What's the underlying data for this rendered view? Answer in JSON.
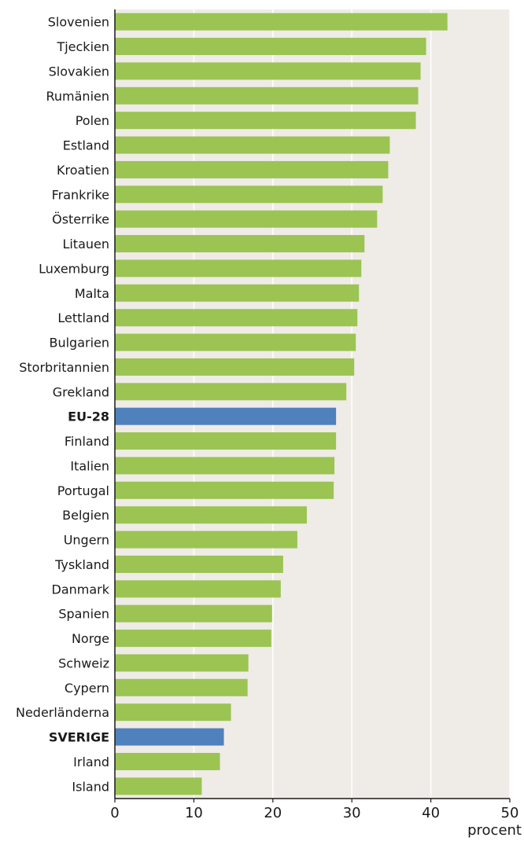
{
  "chart_data": {
    "type": "bar",
    "orientation": "horizontal",
    "title": "",
    "xlabel": "procent",
    "ylabel": "",
    "xlim": [
      0,
      50
    ],
    "xticks": [
      0,
      10,
      20,
      30,
      40,
      50
    ],
    "grid": true,
    "categories": [
      "Slovenien",
      "Tjeckien",
      "Slovakien",
      "Rumänien",
      "Polen",
      "Estland",
      "Kroatien",
      "Frankrike",
      "Österrike",
      "Litauen",
      "Luxemburg",
      "Malta",
      "Lettland",
      "Bulgarien",
      "Storbritannien",
      "Grekland",
      "EU-28",
      "Finland",
      "Italien",
      "Portugal",
      "Belgien",
      "Ungern",
      "Tyskland",
      "Danmark",
      "Spanien",
      "Norge",
      "Schweiz",
      "Cypern",
      "Nederländerna",
      "SVERIGE",
      "Irland",
      "Island"
    ],
    "values": [
      42.1,
      39.4,
      38.7,
      38.4,
      38.1,
      34.8,
      34.6,
      33.9,
      33.2,
      31.6,
      31.2,
      30.9,
      30.7,
      30.5,
      30.3,
      29.3,
      28.0,
      28.0,
      27.8,
      27.7,
      24.3,
      23.1,
      21.3,
      21.0,
      19.9,
      19.8,
      16.9,
      16.8,
      14.7,
      13.8,
      13.3,
      11.0
    ],
    "highlighted": [
      "EU-28",
      "SVERIGE"
    ],
    "colors": {
      "bar": "#9bc453",
      "highlight": "#4f81bd",
      "plot_background": "#efebe7",
      "grid": "#ffffff",
      "axis": "#1a1a1a"
    }
  }
}
